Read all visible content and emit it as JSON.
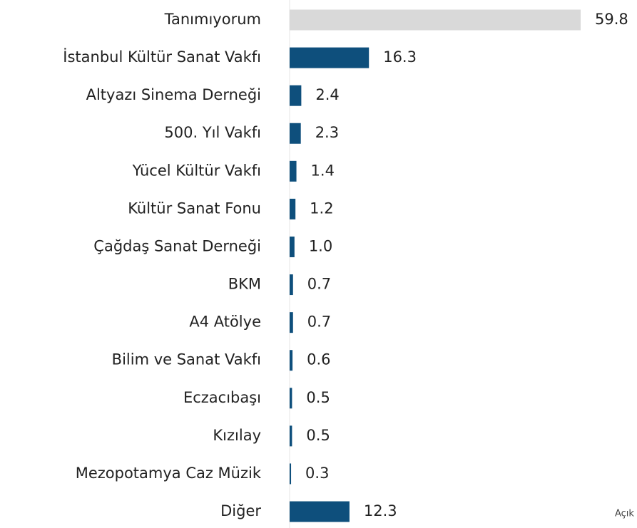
{
  "chart_data": {
    "type": "barh",
    "categories": [
      "Tanımıyorum",
      "İstanbul Kültür Sanat Vakfı",
      "Altyazı Sinema Derneği",
      "500. Yıl Vakfı",
      "Yücel Kültür Vakfı",
      "Kültür Sanat Fonu",
      "Çağdaş Sanat Derneği",
      "BKM",
      "A4 Atölye",
      "Bilim ve Sanat Vakfı",
      "Eczacıbaşı",
      "Kızılay",
      "Mezopotamya Caz Müzik",
      "Diğer"
    ],
    "values": [
      59.8,
      16.3,
      2.4,
      2.3,
      1.4,
      1.2,
      1.0,
      0.7,
      0.7,
      0.6,
      0.5,
      0.5,
      0.3,
      12.3
    ],
    "value_labels": [
      "59.8",
      "16.3",
      "2.4",
      "2.3",
      "1.4",
      "1.2",
      "1.0",
      "0.7",
      "0.7",
      "0.6",
      "0.5",
      "0.5",
      "0.3",
      "12.3"
    ],
    "colors": [
      "#d9d9d9",
      "#0e4f7c",
      "#0e4f7c",
      "#0e4f7c",
      "#0e4f7c",
      "#0e4f7c",
      "#0e4f7c",
      "#0e4f7c",
      "#0e4f7c",
      "#0e4f7c",
      "#0e4f7c",
      "#0e4f7c",
      "#0e4f7c",
      "#0e4f7c"
    ],
    "annotation": "Açık"
  }
}
